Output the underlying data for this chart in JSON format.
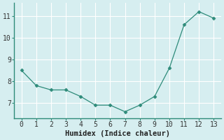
{
  "x": [
    0,
    1,
    2,
    3,
    4,
    5,
    6,
    7,
    8,
    9,
    10,
    11,
    12,
    13
  ],
  "y": [
    8.5,
    7.8,
    7.6,
    7.6,
    7.3,
    6.9,
    6.9,
    6.6,
    6.9,
    7.3,
    8.6,
    10.6,
    11.2,
    10.9
  ],
  "line_color": "#2e8b7a",
  "marker": "D",
  "marker_size": 2.5,
  "bg_color": "#d6eef0",
  "grid_color": "#ffffff",
  "xlabel": "Humidex (Indice chaleur)",
  "xlabel_fontsize": 7.5,
  "tick_fontsize": 7,
  "ylim": [
    6.3,
    11.6
  ],
  "yticks": [
    7,
    8,
    9,
    10,
    11
  ],
  "xlim": [
    -0.5,
    13.5
  ],
  "xticks": [
    0,
    1,
    2,
    3,
    4,
    5,
    6,
    7,
    8,
    9,
    10,
    11,
    12,
    13
  ],
  "spine_color": "#2e8b7a",
  "axis_bottom_color": "#2e8b7a"
}
